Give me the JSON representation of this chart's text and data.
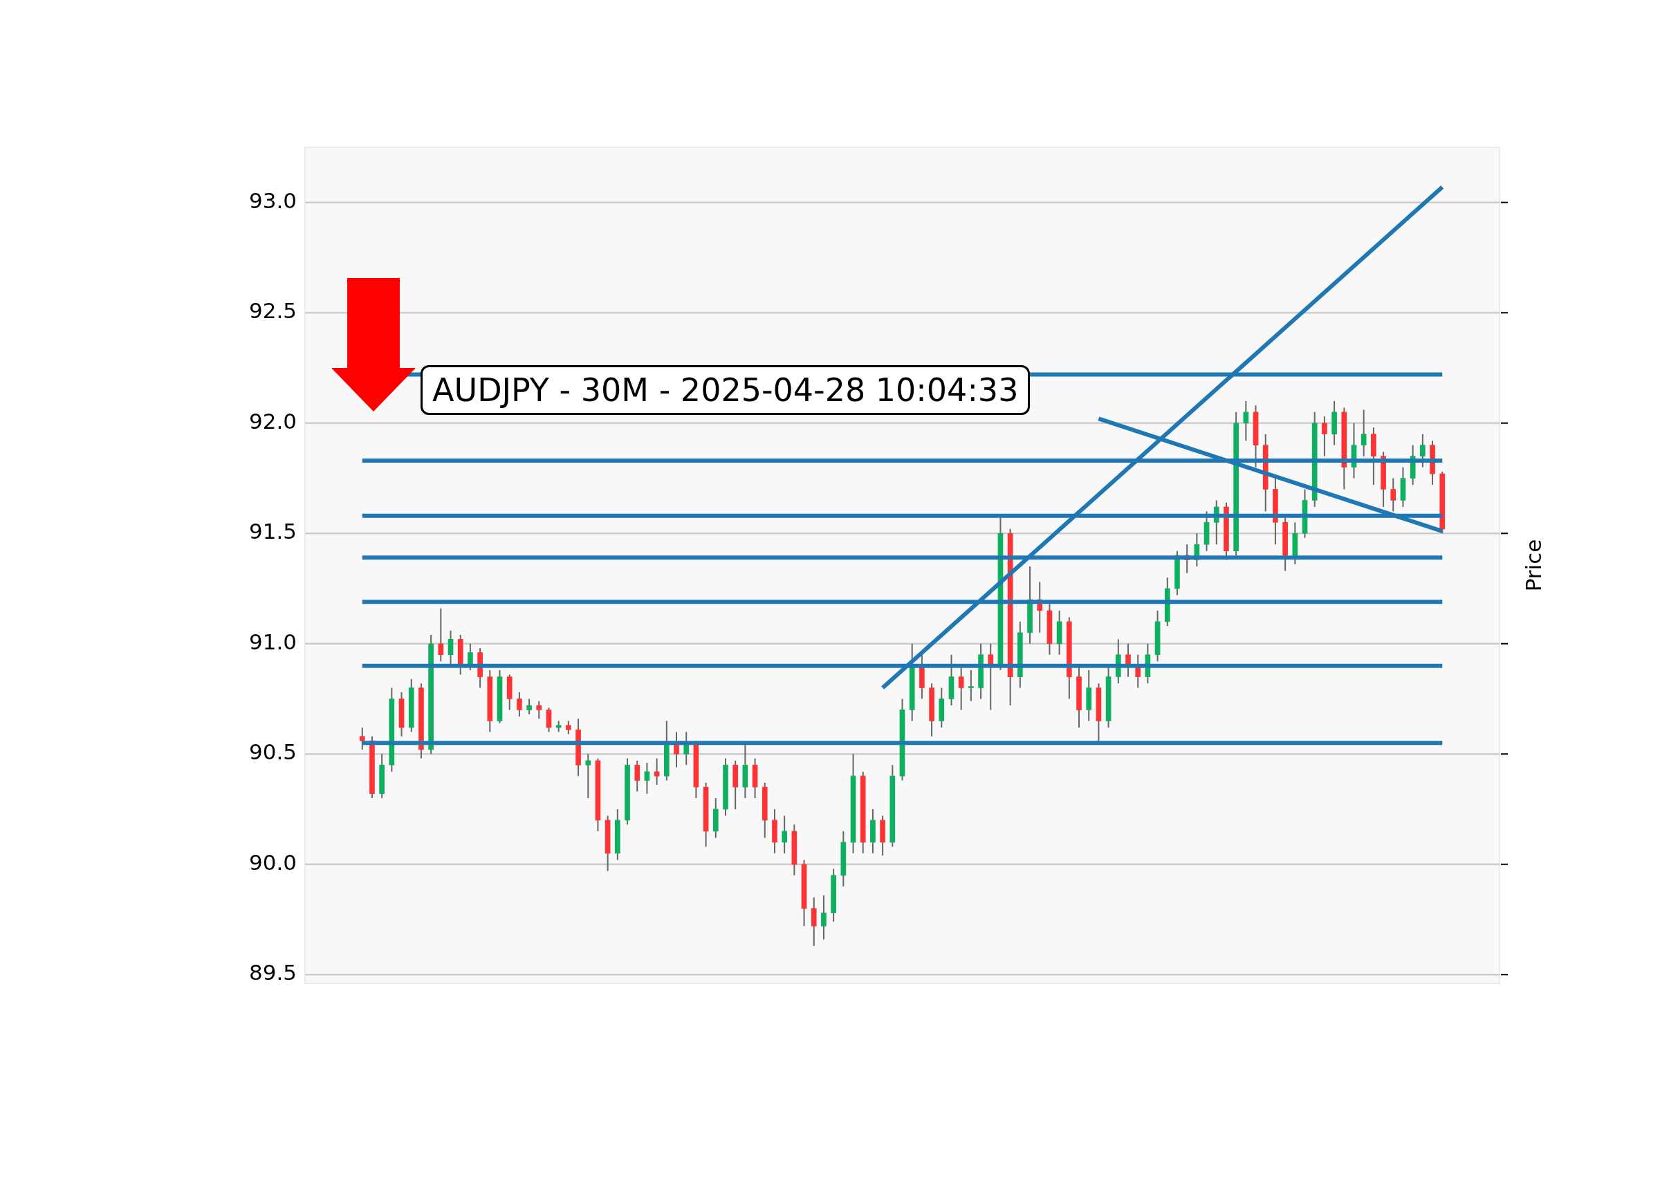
{
  "chart_data": {
    "type": "candlestick",
    "title": "AUDJPY - 30M - 2025-04-28 10:04:33",
    "ylabel": "Price",
    "categories": [
      null,
      null,
      null,
      null,
      null,
      null,
      null,
      null,
      null,
      null,
      null,
      null,
      null,
      null,
      null,
      null,
      null,
      null,
      null,
      null,
      null,
      null,
      null,
      null,
      null,
      null,
      null,
      null,
      null,
      null,
      null,
      null,
      null,
      null,
      null,
      null,
      null,
      null,
      null,
      null,
      null,
      null,
      null,
      null,
      null,
      null,
      null,
      null,
      null,
      null,
      null,
      null,
      null,
      null,
      null,
      null,
      null,
      null,
      null,
      null,
      null,
      null,
      null,
      null,
      null,
      null,
      null,
      null,
      null,
      null,
      null,
      null,
      null,
      null,
      null,
      null,
      null,
      null,
      null,
      null,
      null,
      null,
      null,
      null,
      null,
      null,
      null,
      null,
      null,
      null,
      null,
      null,
      null,
      null,
      null,
      null,
      null,
      null,
      null,
      null,
      null,
      null,
      null,
      null,
      null,
      null,
      null,
      null,
      null,
      null,
      null
    ],
    "ohlc": [
      [
        90.58,
        90.62,
        90.52,
        90.56
      ],
      [
        90.56,
        90.58,
        90.3,
        90.32
      ],
      [
        90.32,
        90.5,
        90.3,
        90.45
      ],
      [
        90.45,
        90.8,
        90.42,
        90.75
      ],
      [
        90.75,
        90.78,
        90.58,
        90.62
      ],
      [
        90.62,
        90.84,
        90.6,
        90.8
      ],
      [
        90.8,
        90.82,
        90.48,
        90.52
      ],
      [
        90.52,
        91.04,
        90.5,
        91.0
      ],
      [
        91.0,
        91.16,
        90.92,
        90.95
      ],
      [
        90.95,
        91.06,
        90.9,
        91.02
      ],
      [
        91.02,
        91.04,
        90.86,
        90.9
      ],
      [
        90.9,
        91.0,
        90.88,
        90.96
      ],
      [
        90.96,
        90.98,
        90.8,
        90.85
      ],
      [
        90.85,
        90.88,
        90.6,
        90.65
      ],
      [
        90.65,
        90.88,
        90.64,
        90.85
      ],
      [
        90.85,
        90.86,
        90.7,
        90.75
      ],
      [
        90.75,
        90.78,
        90.67,
        90.7
      ],
      [
        90.7,
        90.75,
        90.68,
        90.72
      ],
      [
        90.72,
        90.74,
        90.66,
        90.7
      ],
      [
        90.7,
        90.71,
        90.6,
        90.62
      ],
      [
        90.62,
        90.65,
        90.6,
        90.63
      ],
      [
        90.63,
        90.65,
        90.59,
        90.61
      ],
      [
        90.61,
        90.66,
        90.4,
        90.45
      ],
      [
        90.45,
        90.5,
        90.3,
        90.47
      ],
      [
        90.47,
        90.48,
        90.15,
        90.2
      ],
      [
        90.2,
        90.22,
        89.97,
        90.05
      ],
      [
        90.05,
        90.25,
        90.02,
        90.2
      ],
      [
        90.2,
        90.48,
        90.18,
        90.45
      ],
      [
        90.45,
        90.47,
        90.33,
        90.38
      ],
      [
        90.38,
        90.46,
        90.32,
        90.42
      ],
      [
        90.42,
        90.48,
        90.36,
        90.4
      ],
      [
        90.4,
        90.65,
        90.38,
        90.55
      ],
      [
        90.55,
        90.6,
        90.44,
        90.5
      ],
      [
        90.5,
        90.6,
        90.45,
        90.55
      ],
      [
        90.55,
        90.56,
        90.3,
        90.35
      ],
      [
        90.35,
        90.37,
        90.08,
        90.15
      ],
      [
        90.15,
        90.3,
        90.12,
        90.25
      ],
      [
        90.25,
        90.48,
        90.22,
        90.45
      ],
      [
        90.45,
        90.47,
        90.25,
        90.35
      ],
      [
        90.35,
        90.55,
        90.3,
        90.45
      ],
      [
        90.45,
        90.48,
        90.3,
        90.35
      ],
      [
        90.35,
        90.37,
        90.12,
        90.2
      ],
      [
        90.2,
        90.25,
        90.05,
        90.1
      ],
      [
        90.1,
        90.22,
        90.05,
        90.15
      ],
      [
        90.15,
        90.18,
        89.95,
        90.0
      ],
      [
        90.0,
        90.02,
        89.72,
        89.8
      ],
      [
        89.8,
        89.85,
        89.63,
        89.72
      ],
      [
        89.72,
        89.86,
        89.66,
        89.78
      ],
      [
        89.78,
        89.98,
        89.74,
        89.95
      ],
      [
        89.95,
        90.15,
        89.9,
        90.1
      ],
      [
        90.1,
        90.5,
        90.05,
        90.4
      ],
      [
        90.4,
        90.42,
        90.05,
        90.1
      ],
      [
        90.1,
        90.25,
        90.05,
        90.2
      ],
      [
        90.2,
        90.22,
        90.04,
        90.1
      ],
      [
        90.1,
        90.45,
        90.08,
        90.4
      ],
      [
        90.4,
        90.75,
        90.38,
        90.7
      ],
      [
        90.7,
        91.0,
        90.65,
        90.9
      ],
      [
        90.9,
        90.95,
        90.75,
        90.8
      ],
      [
        90.8,
        90.82,
        90.58,
        90.65
      ],
      [
        90.65,
        90.8,
        90.62,
        90.75
      ],
      [
        90.75,
        90.95,
        90.72,
        90.85
      ],
      [
        90.85,
        90.9,
        90.7,
        90.8
      ],
      [
        90.8,
        90.88,
        90.74,
        90.8
      ],
      [
        90.8,
        91.0,
        90.75,
        90.95
      ],
      [
        90.95,
        91.0,
        90.7,
        90.9
      ],
      [
        90.9,
        91.58,
        90.88,
        91.5
      ],
      [
        91.5,
        91.52,
        90.72,
        90.85
      ],
      [
        90.85,
        91.1,
        90.8,
        91.05
      ],
      [
        91.05,
        91.35,
        91.0,
        91.2
      ],
      [
        91.2,
        91.28,
        91.05,
        91.15
      ],
      [
        91.15,
        91.18,
        90.95,
        91.0
      ],
      [
        91.0,
        91.15,
        90.95,
        91.1
      ],
      [
        91.1,
        91.12,
        90.75,
        90.85
      ],
      [
        90.85,
        90.9,
        90.62,
        90.7
      ],
      [
        90.7,
        90.88,
        90.65,
        90.8
      ],
      [
        90.8,
        90.82,
        90.55,
        90.65
      ],
      [
        90.65,
        90.9,
        90.62,
        90.85
      ],
      [
        90.85,
        91.02,
        90.82,
        90.95
      ],
      [
        90.95,
        91.0,
        90.85,
        90.9
      ],
      [
        90.9,
        90.95,
        90.8,
        90.85
      ],
      [
        90.85,
        91.0,
        90.82,
        90.95
      ],
      [
        90.95,
        91.15,
        90.92,
        91.1
      ],
      [
        91.1,
        91.3,
        91.08,
        91.25
      ],
      [
        91.25,
        91.42,
        91.22,
        91.4
      ],
      [
        91.4,
        91.45,
        91.32,
        91.38
      ],
      [
        91.38,
        91.5,
        91.35,
        91.45
      ],
      [
        91.45,
        91.6,
        91.42,
        91.55
      ],
      [
        91.55,
        91.65,
        91.45,
        91.62
      ],
      [
        91.62,
        91.64,
        91.38,
        91.42
      ],
      [
        91.42,
        92.05,
        91.4,
        92.0
      ],
      [
        92.0,
        92.1,
        91.92,
        92.05
      ],
      [
        92.05,
        92.08,
        91.8,
        91.9
      ],
      [
        91.9,
        91.95,
        91.6,
        91.7
      ],
      [
        91.7,
        91.75,
        91.45,
        91.55
      ],
      [
        91.55,
        91.58,
        91.33,
        91.4
      ],
      [
        91.4,
        91.55,
        91.36,
        91.5
      ],
      [
        91.5,
        91.7,
        91.48,
        91.65
      ],
      [
        91.65,
        92.05,
        91.62,
        92.0
      ],
      [
        92.0,
        92.03,
        91.85,
        91.95
      ],
      [
        91.95,
        92.1,
        91.9,
        92.05
      ],
      [
        92.05,
        92.07,
        91.7,
        91.8
      ],
      [
        91.8,
        92.0,
        91.75,
        91.9
      ],
      [
        91.9,
        92.06,
        91.85,
        91.95
      ],
      [
        91.95,
        91.98,
        91.72,
        91.85
      ],
      [
        91.85,
        91.87,
        91.62,
        91.7
      ],
      [
        91.7,
        91.75,
        91.6,
        91.65
      ],
      [
        91.65,
        91.8,
        91.62,
        91.75
      ],
      [
        91.75,
        91.9,
        91.72,
        91.85
      ],
      [
        91.85,
        91.95,
        91.8,
        91.9
      ],
      [
        91.9,
        91.92,
        91.72,
        91.77
      ],
      [
        91.77,
        91.78,
        91.5,
        91.52
      ]
    ],
    "series": [
      {
        "type": "line",
        "color": "#1f77b4",
        "values": [
          null,
          null,
          null,
          null,
          null,
          null,
          null,
          null,
          null,
          null,
          null,
          null,
          null,
          null,
          null,
          null,
          null,
          null,
          null,
          null,
          null,
          null,
          null,
          null,
          null,
          null,
          null,
          null,
          null,
          null,
          null,
          null,
          null,
          null,
          null,
          null,
          null,
          null,
          null,
          null,
          null,
          null,
          null,
          null,
          null,
          null,
          null,
          null,
          null,
          null,
          null,
          null,
          null,
          90.8,
          null,
          null,
          null,
          null,
          null,
          null,
          null,
          null,
          null,
          null,
          null,
          null,
          null,
          null,
          null,
          null,
          null,
          null,
          null,
          null,
          null,
          null,
          null,
          null,
          null,
          null,
          null,
          null,
          null,
          null,
          null,
          null,
          null,
          null,
          null,
          null,
          null,
          null,
          null,
          null,
          null,
          null,
          null,
          null,
          null,
          null,
          null,
          null,
          null,
          null,
          null,
          null,
          null,
          null,
          null,
          null,
          93.07
        ]
      },
      {
        "type": "line",
        "color": "#1f77b4",
        "values": [
          null,
          null,
          null,
          null,
          null,
          null,
          null,
          null,
          null,
          null,
          null,
          null,
          null,
          null,
          null,
          null,
          null,
          null,
          null,
          null,
          null,
          null,
          null,
          null,
          null,
          null,
          null,
          null,
          null,
          null,
          null,
          null,
          null,
          null,
          null,
          null,
          null,
          null,
          null,
          null,
          null,
          null,
          null,
          null,
          null,
          null,
          null,
          null,
          null,
          null,
          null,
          null,
          null,
          null,
          null,
          null,
          null,
          null,
          null,
          null,
          null,
          null,
          null,
          null,
          null,
          null,
          null,
          null,
          null,
          null,
          null,
          null,
          null,
          null,
          null,
          92.02,
          null,
          null,
          null,
          null,
          null,
          null,
          null,
          null,
          null,
          null,
          null,
          null,
          null,
          null,
          null,
          null,
          null,
          null,
          null,
          null,
          null,
          null,
          null,
          null,
          null,
          null,
          null,
          null,
          null,
          null,
          null,
          null,
          null,
          null,
          91.51
        ]
      }
    ],
    "ref_lines": [
      {
        "axis": "y",
        "value": 92.22,
        "color": "#1f77b4"
      },
      {
        "axis": "y",
        "value": 91.83,
        "color": "#1f77b4"
      },
      {
        "axis": "y",
        "value": 91.58,
        "color": "#1f77b4"
      },
      {
        "axis": "y",
        "value": 91.39,
        "color": "#1f77b4"
      },
      {
        "axis": "y",
        "value": 91.19,
        "color": "#1f77b4"
      },
      {
        "axis": "y",
        "value": 90.9,
        "color": "#1f77b4"
      },
      {
        "axis": "y",
        "value": 90.55,
        "color": "#1f77b4"
      }
    ],
    "ylim": [
      89.46,
      93.25
    ],
    "yticks": [
      {
        "value": 89.5,
        "label": "89.5"
      },
      {
        "value": 90,
        "label": "90.0"
      },
      {
        "value": 90.5,
        "label": "90.5"
      },
      {
        "value": 91,
        "label": "91.0"
      },
      {
        "value": 91.5,
        "label": "91.5"
      },
      {
        "value": 92,
        "label": "92.0"
      },
      {
        "value": 92.5,
        "label": "92.5"
      },
      {
        "value": 93,
        "label": "93.0"
      }
    ],
    "grid": "y",
    "legend": false,
    "marker": "none",
    "line_style": "solid"
  }
}
